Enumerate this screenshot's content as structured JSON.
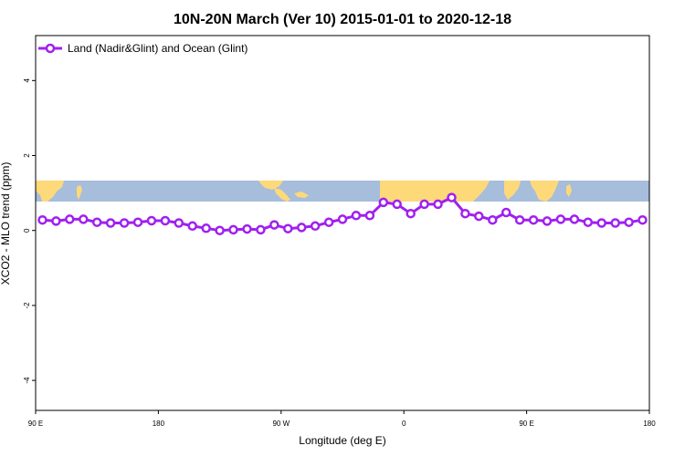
{
  "chart_data": {
    "type": "line",
    "title": "10N-20N March (Ver 10)   2015-01-01 to 2020-12-18",
    "xlabel": "Longitude (deg E)",
    "ylabel": "XCO2 - MLO trend (ppm)",
    "xlim": [
      90,
      540
    ],
    "ylim": [
      -4.8,
      5.2
    ],
    "x_tick_values": [
      90,
      180,
      270,
      360,
      450,
      540
    ],
    "x_tick_labels": [
      "90 E",
      "180",
      "90 W",
      "0",
      "90 E",
      "180"
    ],
    "y_tick_values": [
      -4,
      -2,
      0,
      2,
      4
    ],
    "y_tick_labels": [
      "-4",
      "-2",
      "0",
      "2",
      "4"
    ],
    "grid": false,
    "legend_position": "top-left",
    "series": [
      {
        "name": "Land (Nadir&Glint) and Ocean (Glint)",
        "color": "#a020f0",
        "marker": "open-circle",
        "x": [
          95,
          105,
          115,
          125,
          135,
          145,
          155,
          165,
          175,
          185,
          195,
          205,
          215,
          225,
          235,
          245,
          255,
          265,
          275,
          285,
          295,
          305,
          315,
          325,
          335,
          345,
          355,
          365,
          375,
          385,
          395,
          405,
          415,
          425,
          435,
          445,
          455,
          465,
          475,
          485,
          495,
          505,
          515,
          525,
          535
        ],
        "values": [
          0.28,
          0.25,
          0.3,
          0.3,
          0.22,
          0.2,
          0.2,
          0.22,
          0.26,
          0.26,
          0.2,
          0.12,
          0.06,
          0.0,
          0.02,
          0.04,
          0.02,
          0.15,
          0.05,
          0.08,
          0.12,
          0.22,
          0.3,
          0.4,
          0.4,
          0.75,
          0.7,
          0.45,
          0.7,
          0.7,
          0.88,
          0.45,
          0.38,
          0.28,
          0.48,
          0.28,
          0.28,
          0.25,
          0.3,
          0.3,
          0.22,
          0.2,
          0.2,
          0.22,
          0.28
        ]
      }
    ],
    "map_strip_colors": {
      "ocean": "#a6bddb",
      "land": "#fdd97a"
    }
  }
}
